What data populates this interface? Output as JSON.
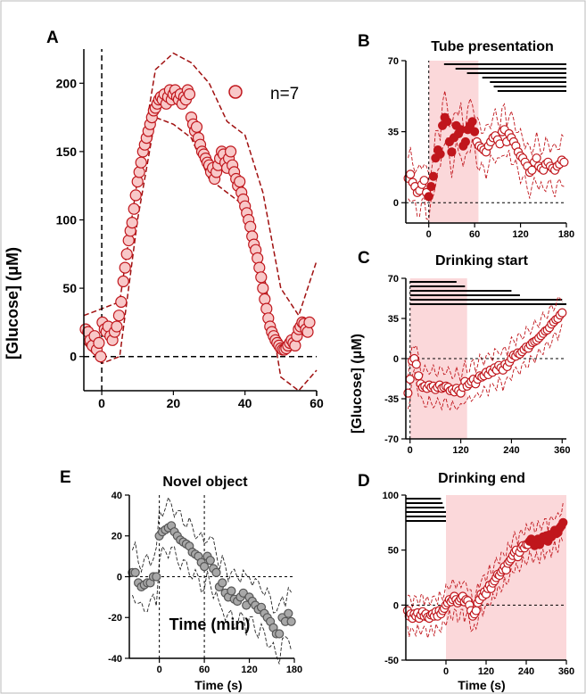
{
  "colors": {
    "red": "#c0161c",
    "pink": "#f8c8c8",
    "light_pink": "#fadada",
    "gray": "#a8a8a8"
  },
  "chart_data": [
    {
      "panel": "A",
      "type": "scatter",
      "title": "",
      "xlabel": "Time (min)",
      "ylabel": "[Glucose] (μM)",
      "xlim": [
        -5,
        60
      ],
      "ylim": [
        -25,
        225
      ],
      "xticks": [
        "0",
        "20",
        "40",
        "60"
      ],
      "yticks": [
        "0",
        "50",
        "100",
        "150",
        "200"
      ],
      "legend": "n=7",
      "x": [
        -4.5,
        -3.8,
        -3.2,
        -2.6,
        -2,
        -1.4,
        -0.8,
        -0.3,
        0.2,
        0.8,
        1.3,
        1.8,
        2.4,
        3,
        3.6,
        4.2,
        4.8,
        5.4,
        6,
        6.5,
        7,
        7.5,
        8,
        8.5,
        9,
        9.5,
        10,
        10.5,
        11,
        11.5,
        12,
        12.5,
        13,
        13.5,
        14,
        14.5,
        15,
        15.5,
        16,
        16.5,
        17,
        17.5,
        18,
        18.5,
        19,
        19.5,
        20,
        20.5,
        21,
        21.5,
        22,
        22.5,
        23,
        23.5,
        24,
        24.5,
        25,
        25.5,
        26,
        26.5,
        27,
        27.5,
        28,
        28.5,
        29,
        29.5,
        30,
        30.5,
        31,
        31.5,
        32,
        32.5,
        33,
        33.5,
        34,
        34.5,
        35,
        35.5,
        36,
        36.5,
        37,
        37.5,
        38,
        38.5,
        39,
        39.5,
        40,
        40.5,
        41,
        41.5,
        42,
        42.5,
        43,
        43.5,
        44,
        44.5,
        45,
        45.5,
        46,
        46.5,
        47,
        47.5,
        48,
        48.5,
        49,
        49.5,
        50,
        50.5,
        51,
        51.5,
        52,
        52.5,
        53,
        53.5,
        54,
        54.5,
        55,
        55.5,
        56,
        56.5,
        57,
        57.5,
        58
      ],
      "y": [
        20,
        18,
        12,
        8,
        15,
        5,
        10,
        0,
        25,
        20,
        18,
        22,
        15,
        12,
        18,
        22,
        30,
        40,
        55,
        65,
        75,
        85,
        92,
        98,
        108,
        118,
        128,
        135,
        142,
        150,
        155,
        160,
        165,
        170,
        175,
        180,
        182,
        185,
        188,
        190,
        188,
        192,
        185,
        190,
        195,
        188,
        192,
        195,
        190,
        188,
        192,
        185,
        190,
        188,
        195,
        192,
        175,
        170,
        165,
        168,
        160,
        155,
        150,
        148,
        145,
        142,
        140,
        135,
        138,
        130,
        135,
        140,
        145,
        150,
        148,
        142,
        138,
        145,
        150,
        140,
        135,
        130,
        125,
        128,
        120,
        115,
        110,
        105,
        100,
        95,
        88,
        82,
        78,
        72,
        65,
        58,
        50,
        42,
        35,
        28,
        22,
        18,
        15,
        12,
        10,
        8,
        6,
        5,
        5,
        6,
        8,
        10,
        12,
        10,
        8,
        15,
        20,
        22,
        25,
        24,
        20,
        18,
        25
      ],
      "range_upper": [
        [
          -5,
          30
        ],
        [
          0,
          35
        ],
        [
          5,
          40
        ],
        [
          10,
          130
        ],
        [
          15,
          210
        ],
        [
          20,
          222
        ],
        [
          25,
          215
        ],
        [
          30,
          200
        ],
        [
          35,
          172
        ],
        [
          40,
          162
        ],
        [
          45,
          120
        ],
        [
          50,
          50
        ],
        [
          55,
          30
        ],
        [
          60,
          70
        ]
      ],
      "range_lower": [
        [
          -5,
          10
        ],
        [
          0,
          -5
        ],
        [
          5,
          0
        ],
        [
          10,
          100
        ],
        [
          15,
          175
        ],
        [
          20,
          170
        ],
        [
          25,
          160
        ],
        [
          30,
          130
        ],
        [
          35,
          120
        ],
        [
          40,
          110
        ],
        [
          45,
          65
        ],
        [
          50,
          -15
        ],
        [
          55,
          -25
        ],
        [
          60,
          -10
        ]
      ]
    },
    {
      "panel": "B",
      "type": "scatter",
      "title": "Tube presentation",
      "xlim": [
        -30,
        180
      ],
      "ylim": [
        -10,
        70
      ],
      "xticks": [
        "0",
        "60",
        "120",
        "180"
      ],
      "yticks": [
        "0",
        "35",
        "70"
      ],
      "shade_range": [
        0,
        65
      ],
      "bars_start": [
        20,
        35,
        50,
        70,
        80,
        85,
        90
      ],
      "x": [
        -27,
        -24,
        -21,
        -18,
        -15,
        -12,
        -9,
        -6,
        -3,
        0,
        3,
        6,
        9,
        12,
        15,
        18,
        21,
        24,
        27,
        30,
        33,
        36,
        39,
        42,
        45,
        48,
        51,
        54,
        57,
        60,
        63,
        66,
        69,
        72,
        75,
        78,
        81,
        84,
        87,
        90,
        93,
        96,
        99,
        102,
        105,
        108,
        111,
        114,
        117,
        120,
        123,
        126,
        129,
        132,
        135,
        138,
        141,
        144,
        147,
        150,
        153,
        156,
        159,
        162,
        165,
        168,
        171,
        174,
        177
      ],
      "y": [
        12,
        14,
        10,
        8,
        5,
        6,
        9,
        11,
        5,
        3,
        8,
        13,
        22,
        26,
        24,
        38,
        42,
        40,
        30,
        25,
        32,
        38,
        34,
        36,
        28,
        30,
        36,
        38,
        40,
        35,
        30,
        28,
        27,
        26,
        25,
        28,
        30,
        32,
        33,
        31,
        29,
        35,
        36,
        30,
        34,
        32,
        30,
        28,
        25,
        23,
        22,
        20,
        18,
        15,
        16,
        20,
        22,
        18,
        17,
        16,
        19,
        20,
        18,
        17,
        16,
        18,
        19,
        21,
        20
      ]
    },
    {
      "panel": "C",
      "type": "scatter",
      "title": "Drinking start",
      "ylabel": "[Glucose] (μM)",
      "xlim": [
        -10,
        370
      ],
      "ylim": [
        -70,
        70
      ],
      "xticks": [
        "0",
        "120",
        "240",
        "360"
      ],
      "yticks": [
        "-70",
        "-35",
        "0",
        "35",
        "70"
      ],
      "shade_range": [
        0,
        135
      ],
      "bars_end": [
        110,
        130,
        240,
        260,
        360,
        370
      ],
      "x": [
        -5,
        0,
        5,
        10,
        15,
        20,
        25,
        30,
        35,
        40,
        45,
        50,
        55,
        60,
        65,
        70,
        75,
        80,
        85,
        90,
        95,
        100,
        105,
        110,
        115,
        120,
        125,
        130,
        135,
        140,
        145,
        150,
        155,
        160,
        165,
        170,
        175,
        180,
        185,
        190,
        195,
        200,
        205,
        210,
        215,
        220,
        225,
        230,
        235,
        240,
        245,
        250,
        255,
        260,
        265,
        270,
        275,
        280,
        285,
        290,
        295,
        300,
        305,
        310,
        315,
        320,
        325,
        330,
        335,
        340,
        345,
        350,
        355,
        360
      ],
      "y": [
        -30,
        -18,
        -2,
        0,
        -5,
        -15,
        -22,
        -25,
        -24,
        -26,
        -23,
        -25,
        -24,
        -27,
        -25,
        -23,
        -26,
        -25,
        -24,
        -25,
        -28,
        -27,
        -29,
        -26,
        -28,
        -30,
        -25,
        -20,
        -24,
        -22,
        -20,
        -18,
        -22,
        -18,
        -15,
        -16,
        -15,
        -12,
        -14,
        -10,
        -12,
        -8,
        -10,
        -6,
        -8,
        -10,
        -5,
        -7,
        -3,
        0,
        3,
        2,
        5,
        4,
        6,
        8,
        10,
        9,
        12,
        14,
        15,
        16,
        18,
        20,
        22,
        24,
        25,
        27,
        30,
        32,
        34,
        35,
        38,
        40
      ]
    },
    {
      "panel": "D",
      "type": "scatter",
      "title": "Drinking end",
      "xlabel": "Time (s)",
      "xlim": [
        -120,
        360
      ],
      "ylim": [
        -50,
        100
      ],
      "xticks": [
        "0",
        "120",
        "240",
        "360"
      ],
      "yticks": [
        "-50",
        "0",
        "50",
        "100"
      ],
      "shade_range": [
        0,
        360
      ],
      "bars_start": [
        -120,
        -120,
        -120,
        -120,
        -120,
        -120
      ],
      "bars_end": [
        -15,
        -10,
        -5,
        0,
        0,
        0
      ],
      "x": [
        -115,
        -110,
        -105,
        -100,
        -95,
        -90,
        -85,
        -80,
        -75,
        -70,
        -65,
        -60,
        -55,
        -50,
        -45,
        -40,
        -35,
        -30,
        -25,
        -20,
        -15,
        -10,
        -5,
        0,
        5,
        10,
        15,
        20,
        25,
        30,
        35,
        40,
        45,
        50,
        55,
        60,
        65,
        70,
        75,
        80,
        85,
        90,
        95,
        100,
        105,
        110,
        115,
        120,
        125,
        130,
        135,
        140,
        145,
        150,
        155,
        160,
        165,
        170,
        175,
        180,
        185,
        190,
        195,
        200,
        205,
        210,
        215,
        220,
        225,
        230,
        235,
        240,
        245,
        250,
        255,
        260,
        265,
        270,
        275,
        280,
        285,
        290,
        295,
        300,
        305,
        310,
        315,
        320,
        325,
        330,
        335,
        340,
        345,
        350
      ],
      "y": [
        -5,
        -10,
        -8,
        -12,
        -8,
        -10,
        -7,
        -12,
        -9,
        -6,
        -10,
        -8,
        -11,
        -12,
        -9,
        -8,
        -10,
        -6,
        -10,
        -5,
        -8,
        -5,
        -3,
        0,
        2,
        5,
        3,
        5,
        8,
        5,
        2,
        4,
        6,
        8,
        3,
        5,
        4,
        0,
        -5,
        -10,
        -8,
        -5,
        2,
        5,
        10,
        8,
        12,
        10,
        15,
        18,
        15,
        20,
        22,
        25,
        28,
        27,
        30,
        32,
        35,
        32,
        38,
        40,
        42,
        45,
        48,
        50,
        44,
        48,
        52,
        54,
        52,
        55,
        55,
        58,
        60,
        57,
        54,
        58,
        60,
        55,
        58,
        62,
        60,
        63,
        58,
        64,
        62,
        65,
        68,
        65,
        66,
        70,
        72,
        75
      ]
    },
    {
      "panel": "E",
      "type": "scatter",
      "title": "Novel object",
      "xlabel": "Time (s)",
      "xlim": [
        -40,
        180
      ],
      "ylim": [
        -40,
        40
      ],
      "xticks": [
        "0",
        "60",
        "120",
        "180"
      ],
      "yticks": [
        "-40",
        "-20",
        "0",
        "20",
        "40"
      ],
      "vlines": [
        0,
        60
      ],
      "x": [
        -36,
        -32,
        -28,
        -24,
        -20,
        -16,
        -12,
        -8,
        -4,
        0,
        4,
        8,
        12,
        16,
        20,
        24,
        28,
        32,
        36,
        40,
        44,
        48,
        52,
        56,
        60,
        64,
        68,
        72,
        76,
        80,
        84,
        88,
        92,
        96,
        100,
        104,
        108,
        112,
        116,
        120,
        124,
        128,
        132,
        136,
        140,
        144,
        148,
        152,
        156,
        160,
        164,
        168,
        172,
        176
      ],
      "y": [
        2,
        2,
        -3,
        -5,
        -4,
        -3,
        -3,
        0,
        0,
        20,
        22,
        23,
        24,
        25,
        22,
        20,
        18,
        17,
        16,
        15,
        12,
        11,
        10,
        7,
        5,
        10,
        8,
        4,
        2,
        -5,
        -3,
        -8,
        -10,
        -7,
        -11,
        -12,
        -10,
        -8,
        -14,
        -10,
        -12,
        -14,
        -16,
        -15,
        -18,
        -20,
        -22,
        -25,
        -28,
        -28,
        -20,
        -22,
        -18,
        -22
      ]
    }
  ],
  "panel_labels": {
    "A": "A",
    "B": "B",
    "C": "C",
    "D": "D",
    "E": "E"
  },
  "common": {
    "time_s": "Time (s)"
  }
}
